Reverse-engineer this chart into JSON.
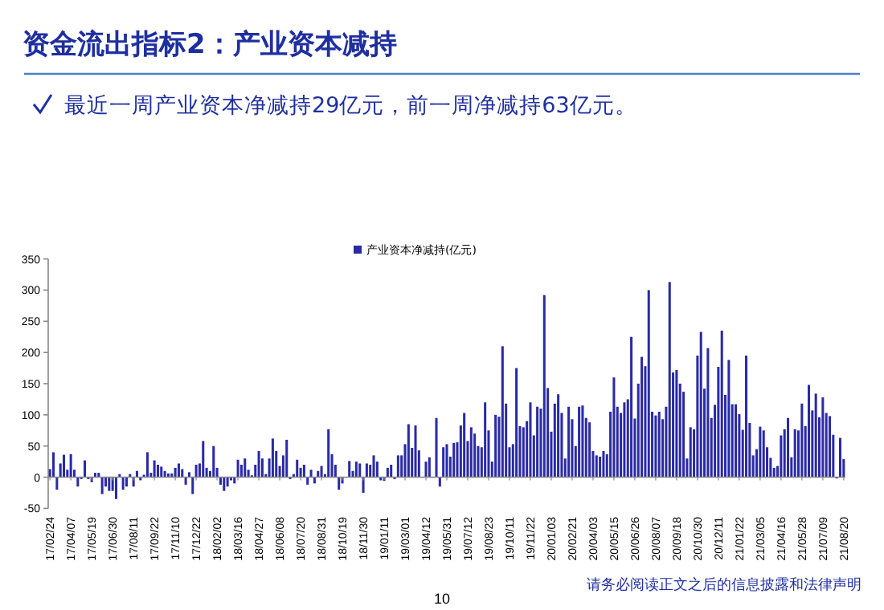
{
  "chart_data": {
    "type": "bar",
    "title": "资金流出指标2：产业资本减持",
    "subtitle": "最近一周产业资本净减持29亿元，前一周净减持63亿元。",
    "categories": [
      "17/02/24",
      null,
      null,
      null,
      null,
      null,
      "17/04/07",
      null,
      null,
      null,
      null,
      null,
      "17/05/19",
      null,
      null,
      null,
      null,
      null,
      "17/06/30",
      null,
      null,
      null,
      null,
      null,
      "17/08/11",
      null,
      null,
      null,
      null,
      null,
      "17/09/22",
      null,
      null,
      null,
      null,
      null,
      "17/11/10",
      null,
      null,
      null,
      null,
      null,
      "17/12/22",
      null,
      null,
      null,
      null,
      null,
      "18/02/02",
      null,
      null,
      null,
      null,
      null,
      "18/03/16",
      null,
      null,
      null,
      null,
      null,
      "18/04/27",
      null,
      null,
      null,
      null,
      null,
      "18/06/08",
      null,
      null,
      null,
      null,
      null,
      "18/07/20",
      null,
      null,
      null,
      null,
      null,
      "18/08/31",
      null,
      null,
      null,
      null,
      null,
      "18/10/19",
      null,
      null,
      null,
      null,
      null,
      "18/11/30",
      null,
      null,
      null,
      null,
      null,
      "19/01/11",
      null,
      null,
      null,
      null,
      null,
      "19/03/01",
      null,
      null,
      null,
      null,
      null,
      "19/04/12",
      null,
      null,
      null,
      null,
      null,
      "19/05/31",
      null,
      null,
      null,
      null,
      null,
      "19/07/12",
      null,
      null,
      null,
      null,
      null,
      "19/08/23",
      null,
      null,
      null,
      null,
      null,
      "19/10/11",
      null,
      null,
      null,
      null,
      null,
      "19/11/22",
      null,
      null,
      null,
      null,
      null,
      "20/01/03",
      null,
      null,
      null,
      null,
      null,
      "20/02/21",
      null,
      null,
      null,
      null,
      null,
      "20/04/03",
      null,
      null,
      null,
      null,
      null,
      "20/05/15",
      null,
      null,
      null,
      null,
      null,
      "20/06/26",
      null,
      null,
      null,
      null,
      null,
      "20/08/07",
      null,
      null,
      null,
      null,
      null,
      "20/09/18",
      null,
      null,
      null,
      null,
      null,
      "20/10/30",
      null,
      null,
      null,
      null,
      null,
      "20/12/11",
      null,
      null,
      null,
      null,
      null,
      "21/01/22",
      null,
      null,
      null,
      null,
      null,
      "21/03/05",
      null,
      null,
      null,
      null,
      null,
      "21/04/16",
      null,
      null,
      null,
      null,
      null,
      "21/05/28",
      null,
      null,
      null,
      null,
      null,
      "21/07/09",
      null,
      null,
      null,
      null,
      null,
      "21/08/20"
    ],
    "series": [
      {
        "name": "产业资本净减持(亿元)",
        "color": "#2a2aa6",
        "values": [
          13,
          40,
          -20,
          22,
          36,
          12,
          37,
          12,
          -15,
          -3,
          27,
          -3,
          -8,
          7,
          7,
          -27,
          -15,
          -22,
          -22,
          -35,
          5,
          -20,
          -15,
          5,
          -15,
          10,
          -5,
          4,
          40,
          7,
          27,
          20,
          17,
          10,
          6,
          6,
          15,
          22,
          13,
          -12,
          8,
          -27,
          20,
          22,
          58,
          15,
          10,
          50,
          15,
          -12,
          -22,
          -15,
          -5,
          -10,
          28,
          20,
          30,
          12,
          3,
          20,
          42,
          30,
          5,
          30,
          62,
          42,
          18,
          35,
          60,
          -3,
          5,
          28,
          15,
          20,
          -12,
          12,
          -10,
          10,
          18,
          5,
          77,
          37,
          20,
          -20,
          -10,
          0,
          26,
          10,
          25,
          22,
          -25,
          22,
          20,
          35,
          25,
          -5,
          -6,
          15,
          20,
          -3,
          35,
          35,
          53,
          85,
          47,
          83,
          43,
          0,
          25,
          32,
          0,
          95,
          -15,
          48,
          53,
          33,
          55,
          56,
          83,
          103,
          58,
          80,
          70,
          50,
          48,
          120,
          75,
          25,
          100,
          97,
          210,
          118,
          48,
          53,
          175,
          82,
          80,
          90,
          120,
          67,
          113,
          110,
          292,
          143,
          73,
          118,
          133,
          103,
          30,
          113,
          93,
          50,
          113,
          115,
          95,
          88,
          42,
          35,
          33,
          42,
          37,
          105,
          160,
          113,
          103,
          120,
          125,
          225,
          94,
          150,
          193,
          178,
          300,
          105,
          99,
          105,
          93,
          113,
          313,
          168,
          172,
          150,
          137,
          30,
          80,
          77,
          195,
          233,
          142,
          207,
          95,
          116,
          177,
          235,
          132,
          188,
          117,
          117,
          101,
          76,
          195,
          87,
          35,
          45,
          81,
          75,
          48,
          31,
          15,
          18,
          67,
          77,
          95,
          32,
          77,
          75,
          118,
          82,
          148,
          107,
          134,
          96,
          128,
          103,
          98,
          68,
          -2,
          63,
          29
        ]
      }
    ],
    "ylim": [
      -50,
      350
    ],
    "yticks": [
      -50,
      0,
      50,
      100,
      150,
      200,
      250,
      300,
      350
    ],
    "legend": "top",
    "annotations": [
      "请务必阅读正文之后的信息披露和法律声明",
      "10"
    ]
  }
}
